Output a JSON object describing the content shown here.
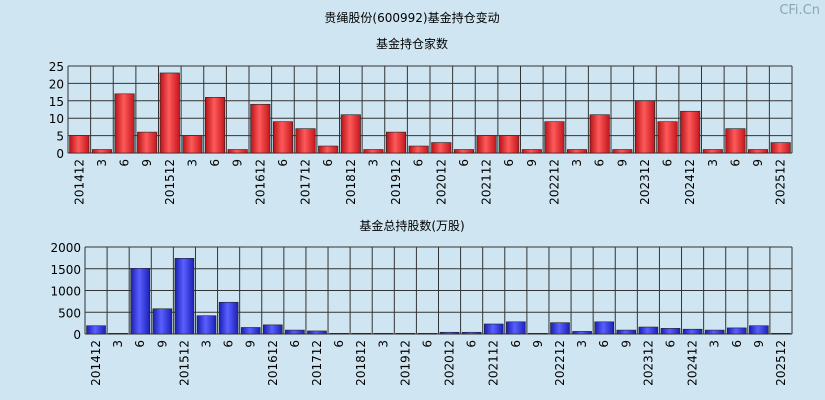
{
  "main_title": "贵绳股份(600992)基金持仓变动",
  "watermark": "CFi.Cn",
  "colors": {
    "background": "#cfe6f2",
    "red_bar": "#e0272b",
    "blue_bar": "#2a2fd6",
    "grid": "#333333"
  },
  "chart_data": [
    {
      "type": "bar",
      "title": "基金持仓家数",
      "ylim": [
        0,
        25
      ],
      "yticks": [
        0,
        5,
        10,
        15,
        20,
        25
      ],
      "grid": true,
      "categories": [
        "201412",
        "3",
        "6",
        "9",
        "201512",
        "3",
        "6",
        "9",
        "201612",
        "6",
        "201712",
        "6",
        "201812",
        "3",
        "201912",
        "6",
        "202012",
        "6",
        "202112",
        "6",
        "9",
        "202212",
        "3",
        "6",
        "9",
        "202312",
        "6",
        "202412",
        "3",
        "6",
        "9",
        "202512"
      ],
      "x_tick_labels": [
        "201412",
        "3",
        "6",
        "9",
        "201512",
        "3",
        "6",
        "9",
        "201612",
        "6",
        "201712",
        "6",
        "201812",
        "3",
        "201912",
        "6",
        "202012",
        "6",
        "202112",
        "6",
        "9",
        "202212",
        "3",
        "6",
        "9",
        "202312",
        "6",
        "202412",
        "3",
        "6",
        "9",
        "202512"
      ],
      "values": [
        5,
        1,
        17,
        6,
        23,
        5,
        16,
        1,
        14,
        9,
        7,
        2,
        11,
        1,
        6,
        2,
        3,
        1,
        5,
        5,
        1,
        9,
        1,
        11,
        1,
        15,
        9,
        12,
        1,
        7,
        1,
        3
      ]
    },
    {
      "type": "bar",
      "title": "基金总持股数(万股)",
      "ylim": [
        0,
        2000
      ],
      "yticks": [
        0,
        500,
        1000,
        1500,
        2000
      ],
      "grid": true,
      "categories": [
        "201412",
        "3",
        "6",
        "9",
        "201512",
        "3",
        "6",
        "9",
        "201612",
        "6",
        "201712",
        "6",
        "201812",
        "3",
        "201912",
        "6",
        "202012",
        "6",
        "202112",
        "6",
        "9",
        "202212",
        "3",
        "6",
        "9",
        "202312",
        "6",
        "202412",
        "3",
        "6",
        "9",
        "202512"
      ],
      "x_tick_labels": [
        "201412",
        "3",
        "6",
        "9",
        "201512",
        "3",
        "6",
        "9",
        "201612",
        "6",
        "201712",
        "6",
        "201812",
        "3",
        "201912",
        "6",
        "202012",
        "6",
        "202112",
        "6",
        "9",
        "202212",
        "3",
        "6",
        "9",
        "202312",
        "6",
        "202412",
        "3",
        "6",
        "9",
        "202512"
      ],
      "values": [
        190,
        15,
        1510,
        580,
        1740,
        420,
        730,
        150,
        210,
        90,
        70,
        15,
        15,
        15,
        15,
        15,
        40,
        40,
        230,
        280,
        15,
        260,
        60,
        280,
        90,
        160,
        130,
        110,
        90,
        140,
        190,
        15
      ]
    }
  ]
}
